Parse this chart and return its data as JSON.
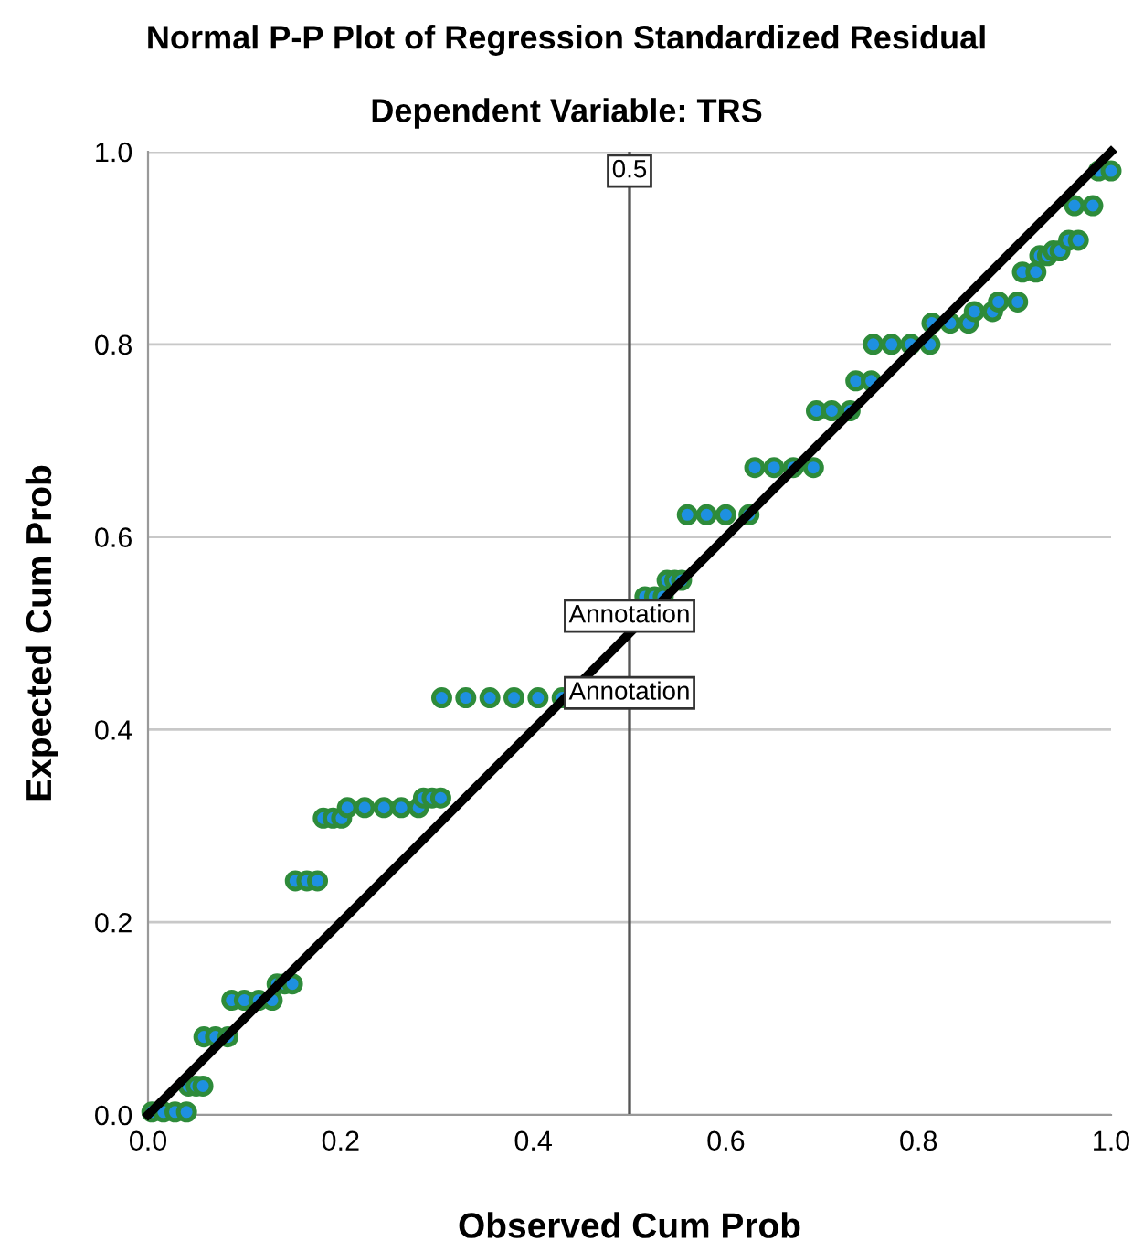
{
  "chart_data": {
    "type": "scatter",
    "title": "Normal P-P Plot of Regression Standardized Residual",
    "subtitle": "Dependent Variable: TRS",
    "xlabel": "Observed Cum Prob",
    "ylabel": "Expected Cum Prob",
    "xlim": [
      0,
      1
    ],
    "ylim": [
      0,
      1
    ],
    "xticks": [
      {
        "value": 0,
        "label": "0.0"
      },
      {
        "value": 0.2,
        "label": "0.2"
      },
      {
        "value": 0.4,
        "label": "0.4"
      },
      {
        "value": 0.6,
        "label": "0.6"
      },
      {
        "value": 0.8,
        "label": "0.8"
      },
      {
        "value": 1,
        "label": "1.0"
      }
    ],
    "yticks": [
      {
        "value": 0,
        "label": "0.0"
      },
      {
        "value": 0.2,
        "label": "0.2"
      },
      {
        "value": 0.4,
        "label": "0.4"
      },
      {
        "value": 0.6,
        "label": "0.6"
      },
      {
        "value": 0.8,
        "label": "0.8"
      },
      {
        "value": 1,
        "label": "1.0"
      }
    ],
    "grid": "y",
    "series": [
      {
        "marker": "circle",
        "color": "#1e90e0",
        "x": [
          0.004,
          0.016,
          0.028,
          0.04,
          0.042,
          0.05,
          0.057,
          0.058,
          0.07,
          0.083,
          0.087,
          0.1,
          0.115,
          0.129,
          0.134,
          0.142,
          0.15,
          0.153,
          0.165,
          0.176,
          0.182,
          0.192,
          0.201,
          0.207,
          0.225,
          0.245,
          0.263,
          0.281,
          0.286,
          0.295,
          0.304,
          0.305,
          0.33,
          0.355,
          0.38,
          0.405,
          0.43,
          0.516,
          0.526,
          0.535,
          0.539,
          0.547,
          0.554,
          0.56,
          0.58,
          0.6,
          0.624,
          0.63,
          0.65,
          0.67,
          0.691,
          0.694,
          0.71,
          0.729,
          0.735,
          0.751,
          0.753,
          0.772,
          0.792,
          0.812,
          0.814,
          0.833,
          0.852,
          0.858,
          0.877,
          0.883,
          0.903,
          0.908,
          0.922,
          0.926,
          0.934,
          0.94,
          0.947,
          0.956,
          0.966,
          0.962,
          0.981,
          0.987,
          1.0
        ],
        "values": [
          0.003,
          0.003,
          0.003,
          0.003,
          0.03,
          0.03,
          0.03,
          0.081,
          0.081,
          0.081,
          0.119,
          0.119,
          0.119,
          0.119,
          0.136,
          0.136,
          0.136,
          0.243,
          0.243,
          0.243,
          0.308,
          0.308,
          0.308,
          0.319,
          0.319,
          0.319,
          0.319,
          0.319,
          0.329,
          0.329,
          0.329,
          0.433,
          0.433,
          0.433,
          0.433,
          0.433,
          0.433,
          0.538,
          0.538,
          0.538,
          0.555,
          0.555,
          0.555,
          0.623,
          0.623,
          0.623,
          0.623,
          0.672,
          0.672,
          0.672,
          0.672,
          0.731,
          0.731,
          0.731,
          0.762,
          0.762,
          0.8,
          0.8,
          0.8,
          0.8,
          0.822,
          0.822,
          0.822,
          0.834,
          0.834,
          0.844,
          0.844,
          0.875,
          0.875,
          0.892,
          0.892,
          0.897,
          0.897,
          0.908,
          0.908,
          0.944,
          0.944,
          0.98,
          0.98
        ]
      },
      {
        "type": "line",
        "marker": "none",
        "color": "#000000",
        "x": [
          0,
          1
        ],
        "values": [
          0,
          1
        ]
      }
    ],
    "ref_lines": [
      {
        "axis": "x",
        "value": 0.5,
        "label": "0.5",
        "color": "#555555"
      }
    ],
    "annotations": [
      {
        "text": "Annotation",
        "x": 0.5,
        "y": 0.518
      },
      {
        "text": "Annotation",
        "x": 0.5,
        "y": 0.438
      }
    ]
  }
}
